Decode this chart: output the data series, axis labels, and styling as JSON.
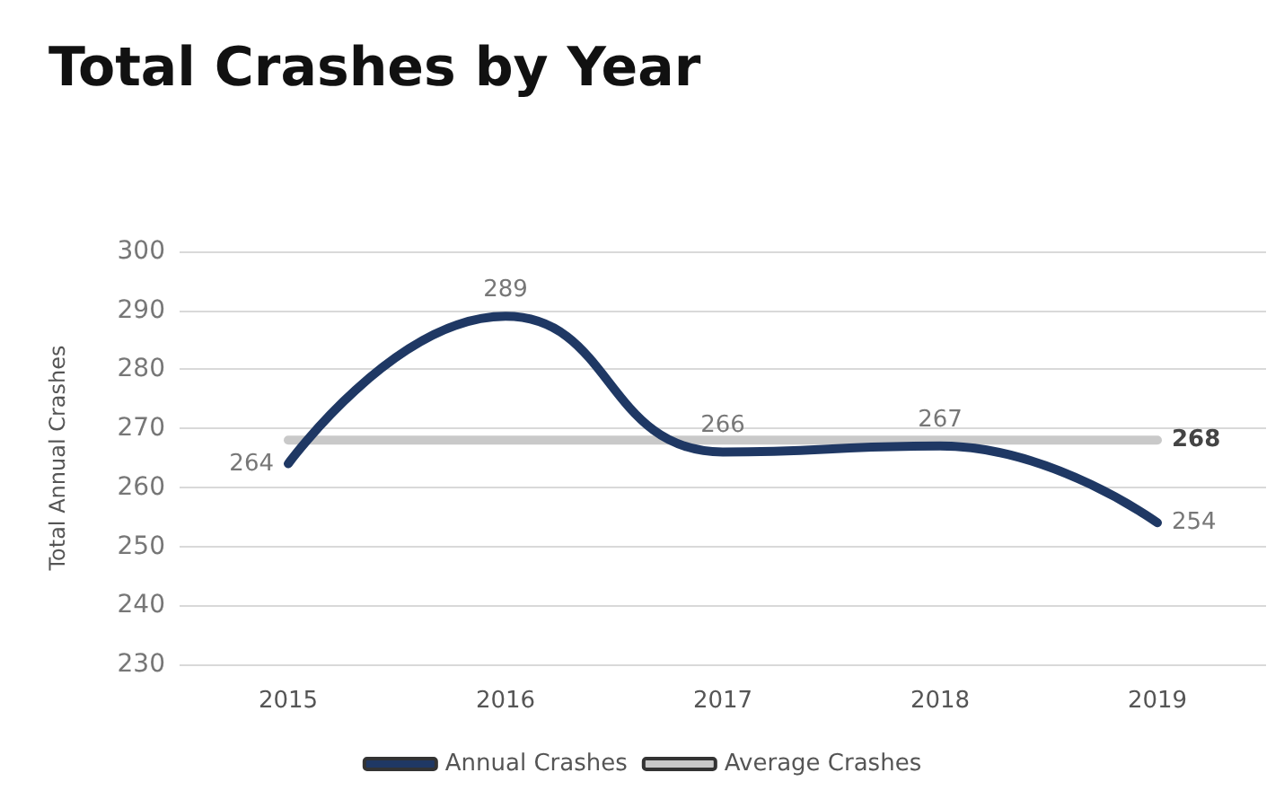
{
  "chart_data": {
    "type": "line",
    "title": "Total Crashes by Year",
    "ylabel": "Total Annual Crashes",
    "categories": [
      "2015",
      "2016",
      "2017",
      "2018",
      "2019"
    ],
    "series": [
      {
        "name": "Annual Crashes",
        "color": "#1f3864",
        "values": [
          264,
          289,
          266,
          267,
          254
        ],
        "value_labels": [
          "264",
          "289",
          "266",
          "267",
          "254"
        ]
      },
      {
        "name": "Average Crashes",
        "color": "#c9c9c9",
        "values": [
          268,
          268,
          268,
          268,
          268
        ],
        "value_labels": [
          null,
          null,
          null,
          null,
          "268"
        ]
      }
    ],
    "ylim": [
      230,
      300
    ],
    "yticks": [
      230,
      240,
      250,
      260,
      270,
      280,
      290,
      300
    ],
    "grid": "y",
    "legend": "bottom",
    "marker": "none",
    "line_style": "solid"
  }
}
